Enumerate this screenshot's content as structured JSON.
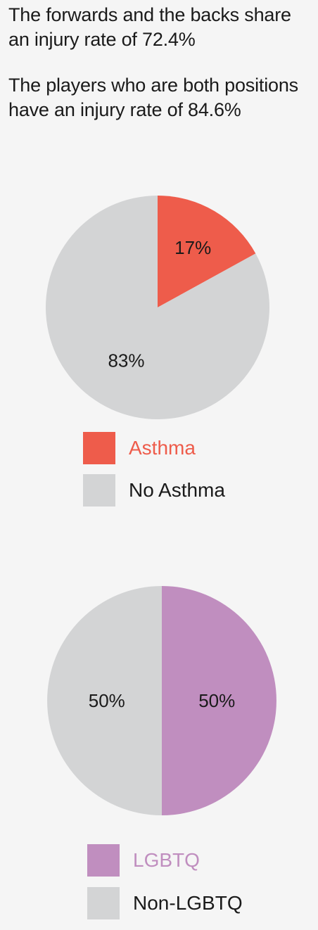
{
  "text": {
    "line1": "The forwards and the backs share",
    "line2": "an injury rate of 72.4%",
    "line3": "The players who are both positions",
    "line4": "have an injury rate of 84.6%"
  },
  "chart_data": [
    {
      "type": "pie",
      "start_angle_deg": 0,
      "direction": "clockwise",
      "slices": [
        {
          "label": "Asthma",
          "value": 17,
          "display": "17%",
          "color": "#ee5c4b"
        },
        {
          "label": "No Asthma",
          "value": 83,
          "display": "83%",
          "color": "#d3d4d5"
        }
      ],
      "legend": [
        {
          "label": "Asthma",
          "color": "#ee5c4b",
          "text_color": "#ee5c4b"
        },
        {
          "label": "No Asthma",
          "color": "#d3d4d5",
          "text_color": "#1a1a1a"
        }
      ],
      "legend_position": "bottom"
    },
    {
      "type": "pie",
      "start_angle_deg": 0,
      "direction": "clockwise",
      "slices": [
        {
          "label": "LGBTQ",
          "value": 50,
          "display": "50%",
          "color": "#c08ebf"
        },
        {
          "label": "Non-LGBTQ",
          "value": 50,
          "display": "50%",
          "color": "#d3d4d5"
        }
      ],
      "legend": [
        {
          "label": "LGBTQ",
          "color": "#c08ebf",
          "text_color": "#c08ebf"
        },
        {
          "label": "Non-LGBTQ",
          "color": "#d3d4d5",
          "text_color": "#1a1a1a"
        }
      ],
      "legend_position": "bottom"
    }
  ]
}
